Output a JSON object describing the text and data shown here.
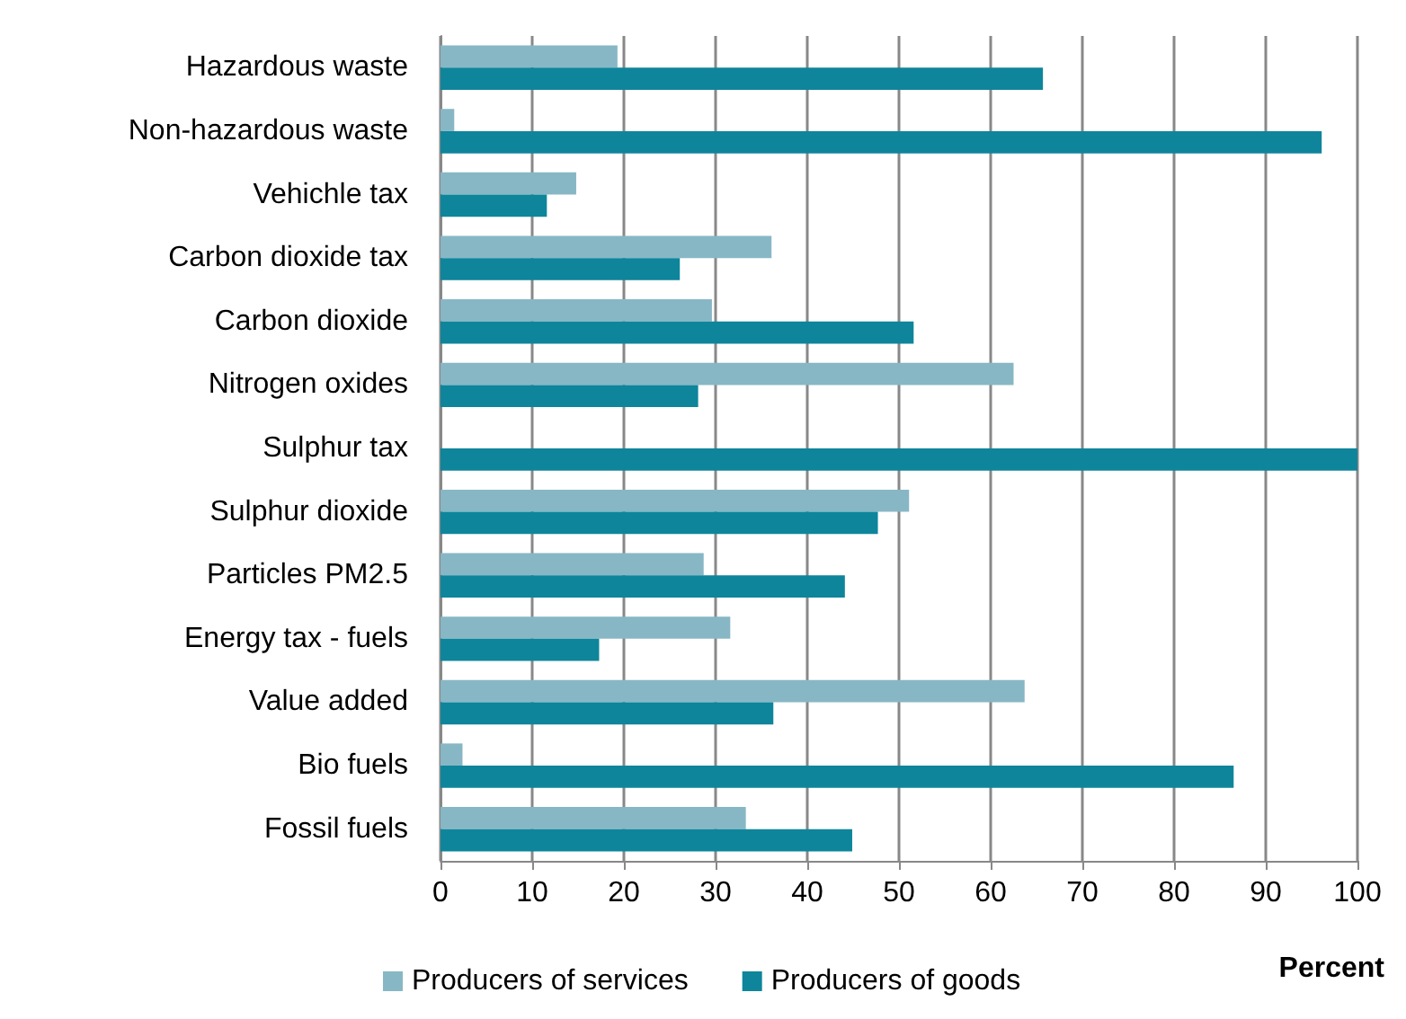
{
  "chart_data": {
    "type": "bar",
    "orientation": "horizontal",
    "xlabel": "Percent",
    "categories": [
      "Hazardous waste",
      "Non-hazardous waste",
      "Vehichle tax",
      "Carbon dioxide tax",
      "Carbon dioxide",
      "Nitrogen oxides",
      "Sulphur tax",
      "Sulphur dioxide",
      "Particles PM2.5",
      "Energy tax - fuels",
      "Value added",
      "Bio fuels",
      "Fossil fuels"
    ],
    "series": [
      {
        "name": "Producers of services",
        "color": "#87b7c5",
        "values": [
          19.3,
          1.5,
          14.8,
          36.1,
          29.6,
          62.5,
          0,
          51.1,
          28.7,
          31.6,
          63.7,
          2.4,
          33.3
        ]
      },
      {
        "name": "Producers of goods",
        "color": "#0e859b",
        "values": [
          65.7,
          96.1,
          11.6,
          26.1,
          51.6,
          28.1,
          100,
          47.7,
          44.1,
          17.3,
          36.3,
          86.5,
          44.9
        ]
      }
    ],
    "xlim": [
      0,
      100
    ],
    "xticks": [
      0,
      10,
      20,
      30,
      40,
      50,
      60,
      70,
      80,
      90,
      100
    ],
    "grid": "x",
    "legend": "bottom"
  }
}
